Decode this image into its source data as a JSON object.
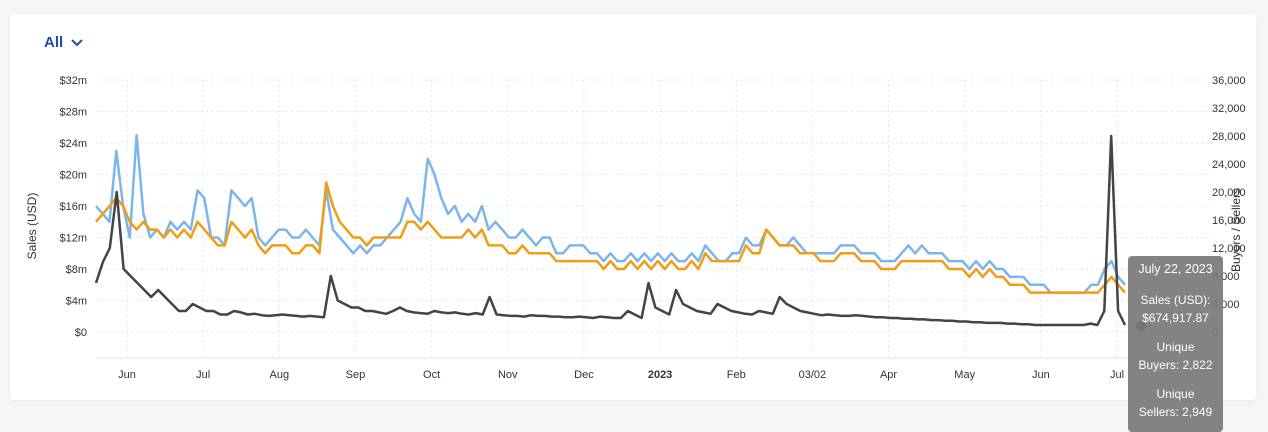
{
  "filter": {
    "label": "All"
  },
  "tooltip": {
    "date": "July 22, 2023",
    "sales_label": "Sales (USD):",
    "sales_value": "$674,917.87",
    "buyers_label": "Unique",
    "buyers_value": "Buyers: 2,822",
    "sellers_label": "Unique",
    "sellers_value": "Sellers: 2,949"
  },
  "chart_data": {
    "type": "line",
    "y_left": {
      "label": "Sales (USD)",
      "range": [
        0,
        32
      ],
      "ticks": [
        "$0",
        "$4m",
        "$8m",
        "$12m",
        "$16m",
        "$20m",
        "$24m",
        "$28m",
        "$32m"
      ],
      "values": [
        0,
        4,
        8,
        12,
        16,
        20,
        24,
        28,
        32
      ]
    },
    "y_right": {
      "label": "Buyers / Sellers",
      "range": [
        0,
        36000
      ],
      "ticks": [
        "0",
        "4,000",
        "8,000",
        "12,000",
        "16,000",
        "20,000",
        "24,000",
        "28,000",
        "32,000",
        "36,000"
      ],
      "values": [
        0,
        4000,
        8000,
        12000,
        16000,
        20000,
        24000,
        28000,
        32000,
        36000
      ]
    },
    "x_ticks": [
      {
        "label": "Jun",
        "bold": false
      },
      {
        "label": "Jul",
        "bold": false
      },
      {
        "label": "Aug",
        "bold": false
      },
      {
        "label": "Sep",
        "bold": false
      },
      {
        "label": "Oct",
        "bold": false
      },
      {
        "label": "Nov",
        "bold": false
      },
      {
        "label": "Dec",
        "bold": false
      },
      {
        "label": "2023",
        "bold": true
      },
      {
        "label": "Feb",
        "bold": false
      },
      {
        "label": "03/02",
        "bold": false
      },
      {
        "label": "Apr",
        "bold": false
      },
      {
        "label": "May",
        "bold": false
      },
      {
        "label": "Jun",
        "bold": false
      },
      {
        "label": "Jul",
        "bold": false
      }
    ],
    "grid": true,
    "series": [
      {
        "axis": "left",
        "color": "#7cb5ec",
        "values": [
          16,
          15,
          14,
          23,
          16,
          12,
          25,
          15,
          12,
          13,
          12,
          14,
          13,
          14,
          13,
          18,
          17,
          12,
          12,
          11,
          18,
          17,
          16,
          17,
          12,
          11,
          12,
          13,
          13,
          12,
          12,
          13,
          12,
          11,
          18,
          13,
          12,
          11,
          10,
          11,
          10,
          11,
          11,
          12,
          13,
          14,
          17,
          15,
          14,
          22,
          20,
          17,
          15,
          16,
          14,
          15,
          14,
          16,
          13,
          14,
          13,
          12,
          12,
          13,
          12,
          11,
          12,
          12,
          10,
          10,
          11,
          11,
          11,
          10,
          10,
          9,
          10,
          9,
          9,
          10,
          9,
          10,
          9,
          10,
          9,
          10,
          9,
          9,
          10,
          9,
          11,
          10,
          9,
          9,
          10,
          10,
          12,
          11,
          11,
          13,
          12,
          11,
          11,
          12,
          11,
          10,
          10,
          10,
          10,
          10,
          11,
          11,
          11,
          10,
          10,
          10,
          9,
          9,
          9,
          10,
          11,
          10,
          11,
          10,
          10,
          10,
          9,
          9,
          9,
          8,
          9,
          8,
          9,
          8,
          8,
          7,
          7,
          7,
          6,
          6,
          6,
          5,
          5,
          5,
          5,
          5,
          5,
          6,
          6,
          8,
          9,
          7,
          6
        ]
      },
      {
        "axis": "left",
        "color": "#f29c13",
        "values": [
          14,
          15,
          16,
          17,
          16,
          14,
          13,
          14,
          13,
          13,
          12,
          13,
          12,
          13,
          12,
          14,
          13,
          12,
          11,
          11,
          14,
          13,
          12,
          13,
          11,
          10,
          11,
          11,
          11,
          10,
          10,
          11,
          11,
          10,
          19,
          16,
          14,
          13,
          12,
          12,
          11,
          12,
          12,
          12,
          12,
          12,
          14,
          14,
          13,
          14,
          13,
          12,
          12,
          12,
          12,
          13,
          12,
          13,
          11,
          11,
          11,
          10,
          10,
          11,
          10,
          10,
          10,
          10,
          9,
          9,
          9,
          9,
          9,
          9,
          9,
          8,
          9,
          8,
          8,
          9,
          8,
          9,
          8,
          9,
          8,
          9,
          8,
          8,
          9,
          8,
          10,
          9,
          9,
          9,
          9,
          9,
          11,
          10,
          10,
          13,
          12,
          11,
          11,
          11,
          10,
          10,
          10,
          9,
          9,
          9,
          10,
          10,
          10,
          9,
          9,
          9,
          8,
          8,
          8,
          9,
          9,
          9,
          9,
          9,
          9,
          9,
          8,
          8,
          8,
          7,
          8,
          7,
          8,
          7,
          7,
          6,
          6,
          6,
          5,
          5,
          5,
          5,
          5,
          5,
          5,
          5,
          5,
          5,
          5,
          6,
          7,
          6,
          5
        ]
      },
      {
        "axis": "right",
        "color": "#434348",
        "values": [
          7000,
          10000,
          12000,
          20000,
          9000,
          8000,
          7000,
          6000,
          5000,
          6000,
          5000,
          4000,
          3000,
          3000,
          4000,
          3500,
          3000,
          3000,
          2500,
          2500,
          3000,
          2800,
          2500,
          2600,
          2400,
          2300,
          2400,
          2500,
          2400,
          2300,
          2200,
          2300,
          2200,
          2100,
          8000,
          4500,
          4000,
          3500,
          3500,
          3000,
          3000,
          2800,
          2600,
          3000,
          3500,
          3000,
          2800,
          2700,
          2600,
          3000,
          2800,
          2700,
          2800,
          2600,
          2500,
          2700,
          2500,
          5000,
          2500,
          2400,
          2300,
          2300,
          2200,
          2400,
          2300,
          2300,
          2200,
          2200,
          2100,
          2100,
          2200,
          2100,
          2000,
          2200,
          2100,
          2000,
          2000,
          3000,
          2500,
          2000,
          7000,
          3500,
          3000,
          2500,
          6000,
          4000,
          3500,
          3000,
          2800,
          2600,
          4000,
          3500,
          3000,
          2800,
          2600,
          2500,
          3000,
          2800,
          2600,
          5000,
          4000,
          3500,
          3000,
          2800,
          2600,
          2400,
          2500,
          2400,
          2300,
          2300,
          2400,
          2300,
          2200,
          2100,
          2100,
          2000,
          2000,
          1900,
          1900,
          1800,
          1800,
          1700,
          1700,
          1600,
          1600,
          1500,
          1500,
          1400,
          1400,
          1300,
          1300,
          1300,
          1200,
          1200,
          1100,
          1100,
          1000,
          1000,
          1000,
          1000,
          1000,
          1000,
          1000,
          1000,
          1200,
          1000,
          3000,
          28000,
          3000,
          1000
        ]
      }
    ]
  }
}
